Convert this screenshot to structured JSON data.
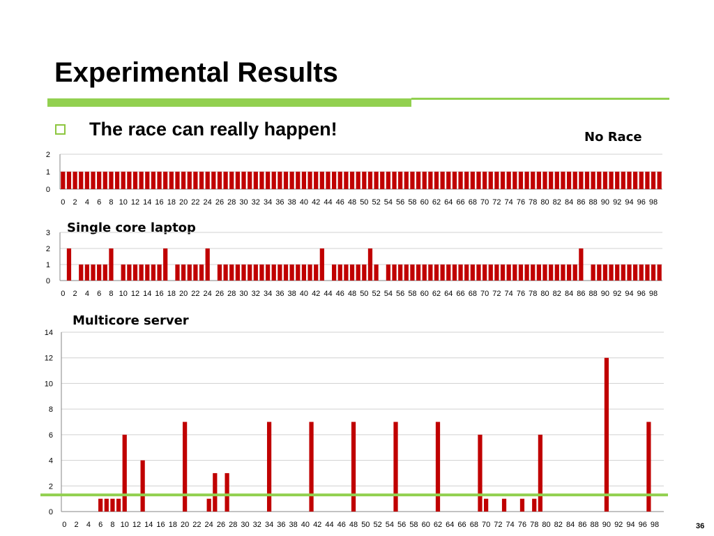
{
  "slide": {
    "title": "Experimental Results",
    "bullet": "The race can really happen!",
    "page_number": "36"
  },
  "colors": {
    "accent": "#92d050",
    "bar": "#c00000"
  },
  "chart_data": [
    {
      "type": "bar",
      "title": "No Race",
      "x": [
        0,
        1,
        2,
        3,
        4,
        5,
        6,
        7,
        8,
        9,
        10,
        11,
        12,
        13,
        14,
        15,
        16,
        17,
        18,
        19,
        20,
        21,
        22,
        23,
        24,
        25,
        26,
        27,
        28,
        29,
        30,
        31,
        32,
        33,
        34,
        35,
        36,
        37,
        38,
        39,
        40,
        41,
        42,
        43,
        44,
        45,
        46,
        47,
        48,
        49,
        50,
        51,
        52,
        53,
        54,
        55,
        56,
        57,
        58,
        59,
        60,
        61,
        62,
        63,
        64,
        65,
        66,
        67,
        68,
        69,
        70,
        71,
        72,
        73,
        74,
        75,
        76,
        77,
        78,
        79,
        80,
        81,
        82,
        83,
        84,
        85,
        86,
        87,
        88,
        89,
        90,
        91,
        92,
        93,
        94,
        95,
        96,
        97,
        98,
        99
      ],
      "values": [
        1,
        1,
        1,
        1,
        1,
        1,
        1,
        1,
        1,
        1,
        1,
        1,
        1,
        1,
        1,
        1,
        1,
        1,
        1,
        1,
        1,
        1,
        1,
        1,
        1,
        1,
        1,
        1,
        1,
        1,
        1,
        1,
        1,
        1,
        1,
        1,
        1,
        1,
        1,
        1,
        1,
        1,
        1,
        1,
        1,
        1,
        1,
        1,
        1,
        1,
        1,
        1,
        1,
        1,
        1,
        1,
        1,
        1,
        1,
        1,
        1,
        1,
        1,
        1,
        1,
        1,
        1,
        1,
        1,
        1,
        1,
        1,
        1,
        1,
        1,
        1,
        1,
        1,
        1,
        1,
        1,
        1,
        1,
        1,
        1,
        1,
        1,
        1,
        1,
        1,
        1,
        1,
        1,
        1,
        1,
        1,
        1,
        1,
        1,
        1
      ],
      "xtick_labels": [
        "0",
        "2",
        "4",
        "6",
        "8",
        "10",
        "12",
        "14",
        "16",
        "18",
        "20",
        "22",
        "24",
        "26",
        "28",
        "30",
        "32",
        "34",
        "36",
        "38",
        "40",
        "42",
        "44",
        "46",
        "48",
        "50",
        "52",
        "54",
        "56",
        "58",
        "60",
        "62",
        "64",
        "66",
        "68",
        "70",
        "72",
        "74",
        "76",
        "78",
        "80",
        "82",
        "84",
        "86",
        "88",
        "90",
        "92",
        "94",
        "96",
        "98"
      ],
      "ylim": [
        0,
        2
      ],
      "yticks": [
        0,
        1,
        2
      ],
      "xlabel": "",
      "ylabel": "",
      "grid": true
    },
    {
      "type": "bar",
      "title": "Single core laptop",
      "x": [
        0,
        1,
        2,
        3,
        4,
        5,
        6,
        7,
        8,
        9,
        10,
        11,
        12,
        13,
        14,
        15,
        16,
        17,
        18,
        19,
        20,
        21,
        22,
        23,
        24,
        25,
        26,
        27,
        28,
        29,
        30,
        31,
        32,
        33,
        34,
        35,
        36,
        37,
        38,
        39,
        40,
        41,
        42,
        43,
        44,
        45,
        46,
        47,
        48,
        49,
        50,
        51,
        52,
        53,
        54,
        55,
        56,
        57,
        58,
        59,
        60,
        61,
        62,
        63,
        64,
        65,
        66,
        67,
        68,
        69,
        70,
        71,
        72,
        73,
        74,
        75,
        76,
        77,
        78,
        79,
        80,
        81,
        82,
        83,
        84,
        85,
        86,
        87,
        88,
        89,
        90,
        91,
        92,
        93,
        94,
        95,
        96,
        97,
        98,
        99
      ],
      "values": [
        0,
        2,
        0,
        1,
        1,
        1,
        1,
        1,
        2,
        0,
        1,
        1,
        1,
        1,
        1,
        1,
        1,
        2,
        0,
        1,
        1,
        1,
        1,
        1,
        2,
        0,
        1,
        1,
        1,
        1,
        1,
        1,
        1,
        1,
        1,
        1,
        1,
        1,
        1,
        1,
        1,
        1,
        1,
        2,
        0,
        1,
        1,
        1,
        1,
        1,
        1,
        2,
        1,
        0,
        1,
        1,
        1,
        1,
        1,
        1,
        1,
        1,
        1,
        1,
        1,
        1,
        1,
        1,
        1,
        1,
        1,
        1,
        1,
        1,
        1,
        1,
        1,
        1,
        1,
        1,
        1,
        1,
        1,
        1,
        1,
        1,
        2,
        0,
        1,
        1,
        1,
        1,
        1,
        1,
        1,
        1,
        1,
        1,
        1,
        1
      ],
      "xtick_labels": [
        "0",
        "2",
        "4",
        "6",
        "8",
        "10",
        "12",
        "14",
        "16",
        "18",
        "20",
        "22",
        "24",
        "26",
        "28",
        "30",
        "32",
        "34",
        "36",
        "38",
        "40",
        "42",
        "44",
        "46",
        "48",
        "50",
        "52",
        "54",
        "56",
        "58",
        "60",
        "62",
        "64",
        "66",
        "68",
        "70",
        "72",
        "74",
        "76",
        "78",
        "80",
        "82",
        "84",
        "86",
        "88",
        "90",
        "92",
        "94",
        "96",
        "98"
      ],
      "ylim": [
        0,
        3
      ],
      "yticks": [
        0,
        1,
        2,
        3
      ],
      "xlabel": "",
      "ylabel": "",
      "grid": true
    },
    {
      "type": "bar",
      "title": "Multicore server",
      "x": [
        0,
        1,
        2,
        3,
        4,
        5,
        6,
        7,
        8,
        9,
        10,
        11,
        12,
        13,
        14,
        15,
        16,
        17,
        18,
        19,
        20,
        21,
        22,
        23,
        24,
        25,
        26,
        27,
        28,
        29,
        30,
        31,
        32,
        33,
        34,
        35,
        36,
        37,
        38,
        39,
        40,
        41,
        42,
        43,
        44,
        45,
        46,
        47,
        48,
        49,
        50,
        51,
        52,
        53,
        54,
        55,
        56,
        57,
        58,
        59,
        60,
        61,
        62,
        63,
        64,
        65,
        66,
        67,
        68,
        69,
        70,
        71,
        72,
        73,
        74,
        75,
        76,
        77,
        78,
        79,
        80,
        81,
        82,
        83,
        84,
        85,
        86,
        87,
        88,
        89,
        90,
        91,
        92,
        93,
        94,
        95,
        96,
        97,
        98,
        99
      ],
      "values": [
        0,
        0,
        0,
        0,
        0,
        0,
        1,
        1,
        1,
        1,
        6,
        0,
        0,
        4,
        0,
        0,
        0,
        0,
        0,
        0,
        7,
        0,
        0,
        0,
        1,
        3,
        0,
        3,
        0,
        0,
        0,
        0,
        0,
        0,
        7,
        0,
        0,
        0,
        0,
        0,
        0,
        7,
        0,
        0,
        0,
        0,
        0,
        0,
        7,
        0,
        0,
        0,
        0,
        0,
        0,
        7,
        0,
        0,
        0,
        0,
        0,
        0,
        7,
        0,
        0,
        0,
        0,
        0,
        0,
        6,
        1,
        0,
        0,
        1,
        0,
        0,
        1,
        0,
        1,
        6,
        0,
        0,
        0,
        0,
        0,
        0,
        0,
        0,
        0,
        0,
        12,
        0,
        0,
        0,
        0,
        0,
        0,
        7,
        0,
        0
      ],
      "xtick_labels": [
        "0",
        "2",
        "4",
        "6",
        "8",
        "10",
        "12",
        "14",
        "16",
        "18",
        "20",
        "22",
        "24",
        "26",
        "28",
        "30",
        "32",
        "34",
        "36",
        "38",
        "40",
        "42",
        "44",
        "46",
        "48",
        "50",
        "52",
        "54",
        "56",
        "58",
        "60",
        "62",
        "64",
        "66",
        "68",
        "70",
        "72",
        "74",
        "76",
        "78",
        "80",
        "82",
        "84",
        "86",
        "88",
        "90",
        "92",
        "94",
        "96",
        "98"
      ],
      "ylim": [
        0,
        14
      ],
      "yticks": [
        0,
        2,
        4,
        6,
        8,
        10,
        12,
        14
      ],
      "xlabel": "",
      "ylabel": "",
      "grid": true,
      "reference_line": {
        "y": 1.3,
        "color": "#92d050"
      }
    }
  ]
}
